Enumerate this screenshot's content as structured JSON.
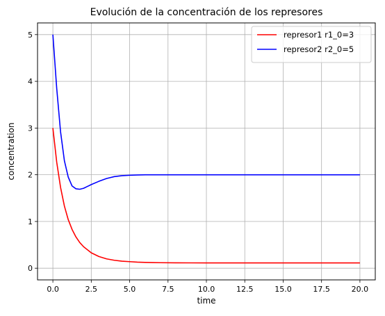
{
  "chart_data": {
    "type": "line",
    "title": "Evolución de la concentración de los represores",
    "xlabel": "time",
    "ylabel": "concentration",
    "xlim": [
      -1.0,
      21.0
    ],
    "ylim": [
      -0.25,
      5.25
    ],
    "xticks": [
      0.0,
      2.5,
      5.0,
      7.5,
      10.0,
      12.5,
      15.0,
      17.5,
      20.0
    ],
    "xtick_labels": [
      "0.0",
      "2.5",
      "5.0",
      "7.5",
      "10.0",
      "12.5",
      "15.0",
      "17.5",
      "20.0"
    ],
    "yticks": [
      0,
      1,
      2,
      3,
      4,
      5
    ],
    "ytick_labels": [
      "0",
      "1",
      "2",
      "3",
      "4",
      "5"
    ],
    "grid": true,
    "legend_position": "top-right",
    "series": [
      {
        "name": "represor1 r1_0=3",
        "color": "#ff0000",
        "x": [
          0,
          0.25,
          0.5,
          0.75,
          1.0,
          1.25,
          1.5,
          1.75,
          2.0,
          2.5,
          3.0,
          3.5,
          4.0,
          4.5,
          5.0,
          5.5,
          6.0,
          6.5,
          7.0,
          8.0,
          9.0,
          10.0,
          12.5,
          15.0,
          17.5,
          20.0
        ],
        "y": [
          3.0,
          2.27,
          1.73,
          1.33,
          1.04,
          0.83,
          0.67,
          0.55,
          0.46,
          0.33,
          0.25,
          0.2,
          0.17,
          0.15,
          0.14,
          0.13,
          0.125,
          0.12,
          0.118,
          0.115,
          0.114,
          0.113,
          0.113,
          0.113,
          0.113,
          0.113
        ]
      },
      {
        "name": "represor2 r2_0=5",
        "color": "#0000ff",
        "x": [
          0,
          0.25,
          0.5,
          0.75,
          1.0,
          1.25,
          1.5,
          1.75,
          2.0,
          2.25,
          2.5,
          3.0,
          3.5,
          4.0,
          4.5,
          5.0,
          5.5,
          6.0,
          7.0,
          8.0,
          10.0,
          12.5,
          15.0,
          17.5,
          20.0
        ],
        "y": [
          5.0,
          3.85,
          2.92,
          2.3,
          1.95,
          1.76,
          1.7,
          1.69,
          1.71,
          1.75,
          1.79,
          1.86,
          1.92,
          1.96,
          1.98,
          1.99,
          1.995,
          2.0,
          2.0,
          2.0,
          2.0,
          2.0,
          2.0,
          2.0,
          2.0
        ]
      }
    ]
  }
}
